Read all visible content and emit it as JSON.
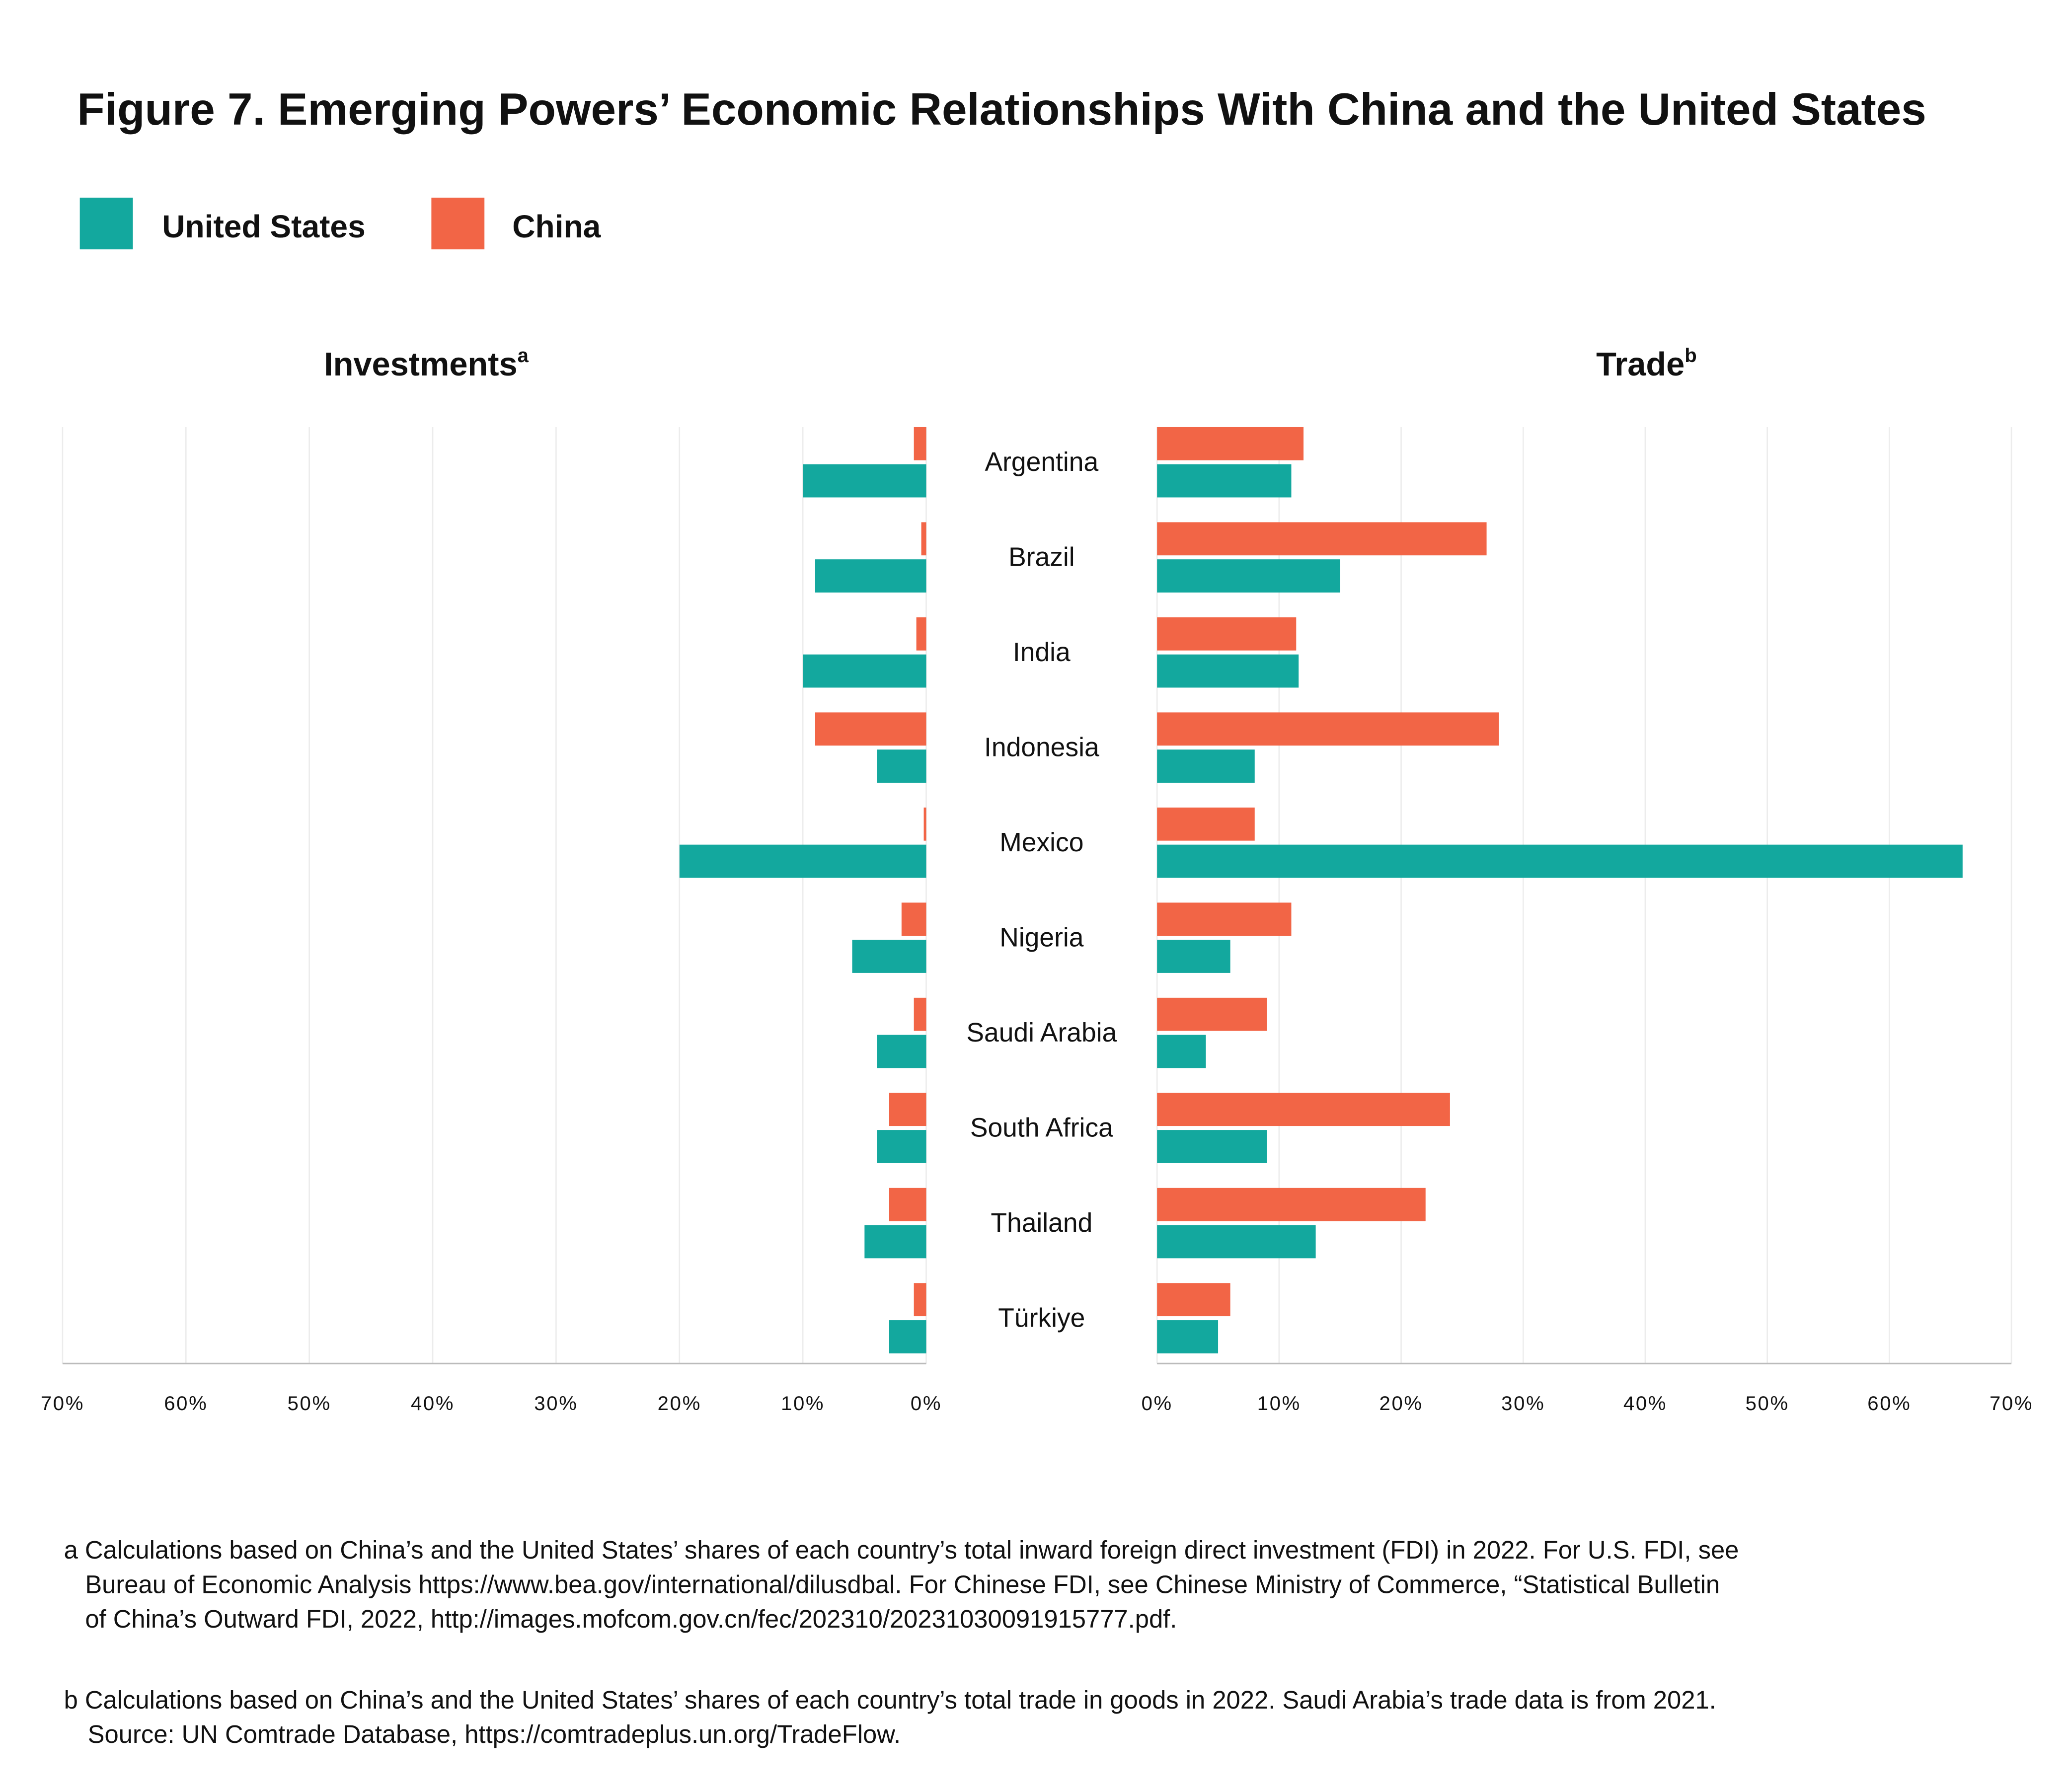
{
  "chart_data": {
    "type": "bar",
    "orientation": "horizontal",
    "title": "Figure 7. Emerging Powers’ Economic Relationships With China and the United States",
    "legend": {
      "placement": "top-left",
      "entries": [
        {
          "name": "United States",
          "color": "#13a89e"
        },
        {
          "name": "China",
          "color": "#f26546"
        }
      ]
    },
    "categories": [
      "Argentina",
      "Brazil",
      "India",
      "Indonesia",
      "Mexico",
      "Nigeria",
      "Saudi Arabia",
      "South Africa",
      "Thailand",
      "Türkiye"
    ],
    "panels": [
      {
        "title": "Investments",
        "superscript": "a",
        "direction": "leftward",
        "xlim": [
          0,
          70
        ],
        "ticks": [
          "70%",
          "60%",
          "50%",
          "40%",
          "30%",
          "20%",
          "10%",
          "0%"
        ],
        "grid": true,
        "series": [
          {
            "name": "United States",
            "values": [
              10,
              9,
              10,
              4,
              20,
              6,
              4,
              4,
              5,
              3
            ]
          },
          {
            "name": "China",
            "values": [
              1,
              0.4,
              0.8,
              9,
              0.2,
              2,
              1,
              3,
              3,
              1
            ]
          }
        ]
      },
      {
        "title": "Trade",
        "superscript": "b",
        "direction": "rightward",
        "xlim": [
          0,
          70
        ],
        "ticks": [
          "0%",
          "10%",
          "20%",
          "30%",
          "40%",
          "50%",
          "60%",
          "70%"
        ],
        "grid": true,
        "series": [
          {
            "name": "United States",
            "values": [
              11,
              15,
              11.6,
              8,
              66,
              6,
              4,
              9,
              13,
              5
            ]
          },
          {
            "name": "China",
            "values": [
              12,
              27,
              11.4,
              28,
              8,
              11,
              9,
              24,
              22,
              6
            ]
          }
        ]
      }
    ]
  },
  "footnotes": {
    "a": [
      "a Calculations based on China’s and the United States’ shares of each country’s total inward foreign direct investment (FDI) in 2022. For U.S. FDI, see",
      "Bureau of Economic Analysis https://www.bea.gov/international/dilusdbal. For Chinese FDI, see Chinese Ministry of Commerce, “Statistical Bulletin",
      "of China’s Outward FDI, 2022, http://images.mofcom.gov.cn/fec/202310/20231030091915777.pdf."
    ],
    "b": [
      "b Calculations based on China’s and the United States’ shares of each country’s total trade in goods in 2022. Saudi Arabia’s trade data is from 2021.",
      "Source: UN Comtrade Database, https://comtradeplus.un.org/TradeFlow."
    ]
  }
}
